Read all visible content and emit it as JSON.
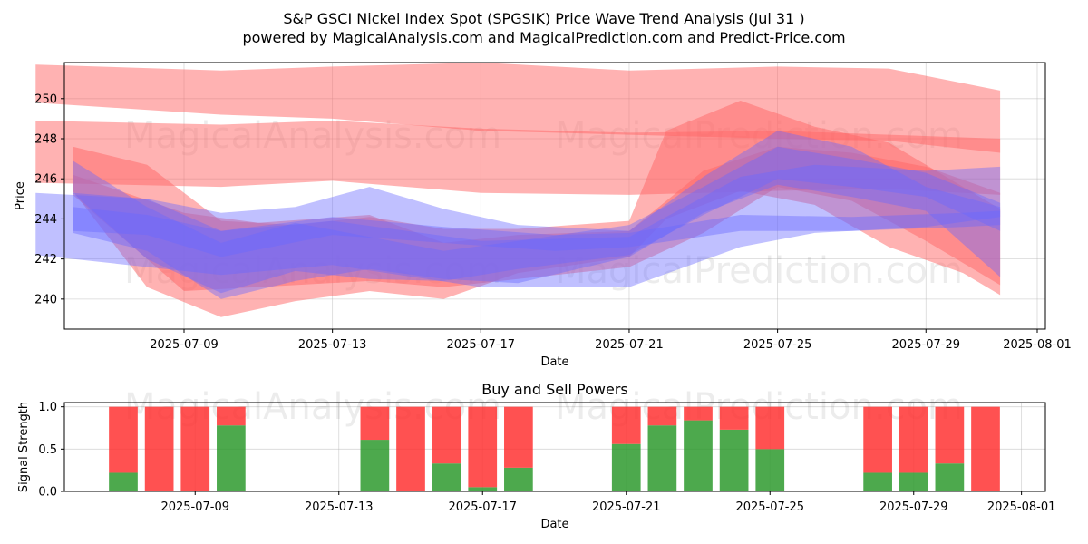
{
  "chart_data": [
    {
      "type": "area",
      "title_line1": "S&P GSCI Nickel Index Spot (SPGSIK) Price Wave Trend Analysis (Jul 31 )",
      "title_line2": "powered by MagicalAnalysis.com and MagicalPrediction.com and Predict-Price.com",
      "xlabel": "Date",
      "ylabel": "Price",
      "x_range": [
        "2025-07-05",
        "2025-08-01"
      ],
      "ylim": [
        238.5,
        251.8
      ],
      "y_ticks": [
        240,
        242,
        244,
        246,
        248,
        250
      ],
      "x_ticks": [
        "2025-07-09",
        "2025-07-13",
        "2025-07-17",
        "2025-07-21",
        "2025-07-25",
        "2025-07-29",
        "2025-08-01"
      ],
      "watermarks": [
        "MagicalAnalysis.com",
        "MagicalPrediction.com"
      ],
      "colors": {
        "red": "#ff6666",
        "blue": "#6a6aff"
      },
      "bands": [
        {
          "color": "red",
          "x": [
            "2025-07-05",
            "2025-07-10",
            "2025-07-13",
            "2025-07-17",
            "2025-07-21",
            "2025-07-25",
            "2025-07-28",
            "2025-07-31"
          ],
          "upper": [
            251.7,
            251.4,
            251.6,
            251.8,
            251.4,
            251.6,
            251.5,
            250.4
          ],
          "lower": [
            249.8,
            249.2,
            249.0,
            248.4,
            248.2,
            248.0,
            247.9,
            247.3
          ]
        },
        {
          "color": "red",
          "x": [
            "2025-07-05",
            "2025-07-10",
            "2025-07-13",
            "2025-07-17",
            "2025-07-21",
            "2025-07-25",
            "2025-07-28",
            "2025-07-31"
          ],
          "upper": [
            248.9,
            248.7,
            248.9,
            248.5,
            248.3,
            248.4,
            248.2,
            248.0
          ],
          "lower": [
            245.8,
            245.6,
            245.9,
            245.3,
            245.2,
            245.4,
            245.5,
            245.2
          ]
        },
        {
          "color": "red",
          "x": [
            "2025-07-06",
            "2025-07-08",
            "2025-07-10",
            "2025-07-12",
            "2025-07-14",
            "2025-07-16",
            "2025-07-18",
            "2025-07-21",
            "2025-07-22",
            "2025-07-24",
            "2025-07-26",
            "2025-07-28",
            "2025-07-30",
            "2025-07-31"
          ],
          "upper": [
            247.6,
            246.7,
            243.9,
            243.7,
            244.1,
            243.5,
            243.5,
            243.9,
            248.4,
            249.9,
            248.6,
            247.8,
            245.6,
            244.5
          ],
          "lower": [
            245.4,
            240.6,
            239.1,
            239.9,
            240.4,
            240.0,
            241.3,
            242.1,
            244.0,
            245.4,
            244.7,
            242.6,
            241.3,
            240.2
          ]
        },
        {
          "color": "red",
          "x": [
            "2025-07-06",
            "2025-07-09",
            "2025-07-11",
            "2025-07-14",
            "2025-07-16",
            "2025-07-18",
            "2025-07-21",
            "2025-07-23",
            "2025-07-25",
            "2025-07-27",
            "2025-07-29",
            "2025-07-31"
          ],
          "upper": [
            246.2,
            244.3,
            243.8,
            244.2,
            242.8,
            243.2,
            243.4,
            246.4,
            247.6,
            247.3,
            246.6,
            245.3
          ],
          "lower": [
            245.2,
            240.4,
            240.6,
            240.9,
            240.6,
            241.0,
            241.6,
            243.3,
            245.6,
            244.9,
            242.9,
            240.7
          ]
        },
        {
          "color": "blue",
          "x": [
            "2025-07-05",
            "2025-07-08",
            "2025-07-10",
            "2025-07-13",
            "2025-07-17",
            "2025-07-21",
            "2025-07-24",
            "2025-07-26",
            "2025-07-29",
            "2025-07-31"
          ],
          "upper": [
            245.3,
            245.0,
            243.4,
            243.9,
            242.9,
            243.1,
            246.1,
            246.7,
            246.4,
            246.6
          ],
          "lower": [
            242.2,
            241.6,
            241.2,
            241.7,
            240.6,
            240.6,
            242.6,
            243.3,
            243.6,
            244.1
          ]
        },
        {
          "color": "blue",
          "x": [
            "2025-07-06",
            "2025-07-08",
            "2025-07-10",
            "2025-07-12",
            "2025-07-14",
            "2025-07-16",
            "2025-07-18",
            "2025-07-21",
            "2025-07-23",
            "2025-07-25",
            "2025-07-27",
            "2025-07-29",
            "2025-07-31"
          ],
          "upper": [
            245.3,
            245.0,
            244.3,
            244.6,
            245.6,
            244.5,
            243.7,
            243.4,
            246.1,
            248.4,
            247.6,
            245.6,
            244.6
          ],
          "lower": [
            243.3,
            242.4,
            240.0,
            240.9,
            241.5,
            241.0,
            240.8,
            242.1,
            244.3,
            245.7,
            245.1,
            244.4,
            241.1
          ]
        },
        {
          "color": "blue",
          "x": [
            "2025-07-06",
            "2025-07-08",
            "2025-07-10",
            "2025-07-13",
            "2025-07-16",
            "2025-07-19",
            "2025-07-21",
            "2025-07-24",
            "2025-07-27",
            "2025-07-30",
            "2025-07-31"
          ],
          "upper": [
            244.6,
            244.2,
            243.4,
            244.1,
            243.6,
            243.2,
            243.3,
            244.2,
            244.1,
            244.3,
            244.4
          ],
          "lower": [
            243.4,
            243.2,
            242.1,
            243.2,
            242.8,
            242.4,
            242.6,
            243.4,
            243.4,
            243.6,
            243.7
          ]
        },
        {
          "color": "blue",
          "x": [
            "2025-07-06",
            "2025-07-08",
            "2025-07-10",
            "2025-07-12",
            "2025-07-14",
            "2025-07-16",
            "2025-07-18",
            "2025-07-21",
            "2025-07-23",
            "2025-07-25",
            "2025-07-27",
            "2025-07-29",
            "2025-07-31"
          ],
          "upper": [
            246.9,
            244.6,
            242.8,
            243.8,
            243.1,
            242.4,
            242.9,
            243.7,
            245.6,
            247.6,
            247.0,
            246.3,
            244.8
          ],
          "lower": [
            245.3,
            242.0,
            240.3,
            241.4,
            241.0,
            240.9,
            241.5,
            242.2,
            244.2,
            246.0,
            245.6,
            245.1,
            243.4
          ]
        }
      ]
    },
    {
      "type": "bar",
      "title": "Buy and Sell Powers",
      "xlabel": "Date",
      "ylabel": "Signal Strength",
      "ylim": [
        0,
        1.05
      ],
      "y_ticks": [
        "0.0",
        "0.5",
        "1.0"
      ],
      "x_ticks": [
        "2025-07-09",
        "2025-07-13",
        "2025-07-17",
        "2025-07-21",
        "2025-07-25",
        "2025-07-29",
        "2025-08-01"
      ],
      "colors": {
        "buy": "#2e9a2e",
        "sell": "#ff3333"
      },
      "dates": [
        "2025-07-07",
        "2025-07-08",
        "2025-07-09",
        "2025-07-10",
        "2025-07-14",
        "2025-07-15",
        "2025-07-16",
        "2025-07-17",
        "2025-07-18",
        "2025-07-21",
        "2025-07-22",
        "2025-07-23",
        "2025-07-24",
        "2025-07-25",
        "2025-07-28",
        "2025-07-29",
        "2025-07-30",
        "2025-07-31"
      ],
      "buy": [
        0.22,
        0.0,
        0.0,
        0.78,
        0.61,
        0.0,
        0.33,
        0.05,
        0.28,
        0.56,
        0.78,
        0.84,
        0.73,
        0.5,
        0.22,
        0.22,
        0.33,
        0.0
      ],
      "sell": [
        0.78,
        1.0,
        1.0,
        0.22,
        0.39,
        1.0,
        0.67,
        0.95,
        0.72,
        0.44,
        0.22,
        0.16,
        0.27,
        0.5,
        0.78,
        0.78,
        0.67,
        1.0
      ],
      "watermarks": [
        "MagicalAnalysis.com",
        "MagicalPrediction.com"
      ]
    }
  ]
}
